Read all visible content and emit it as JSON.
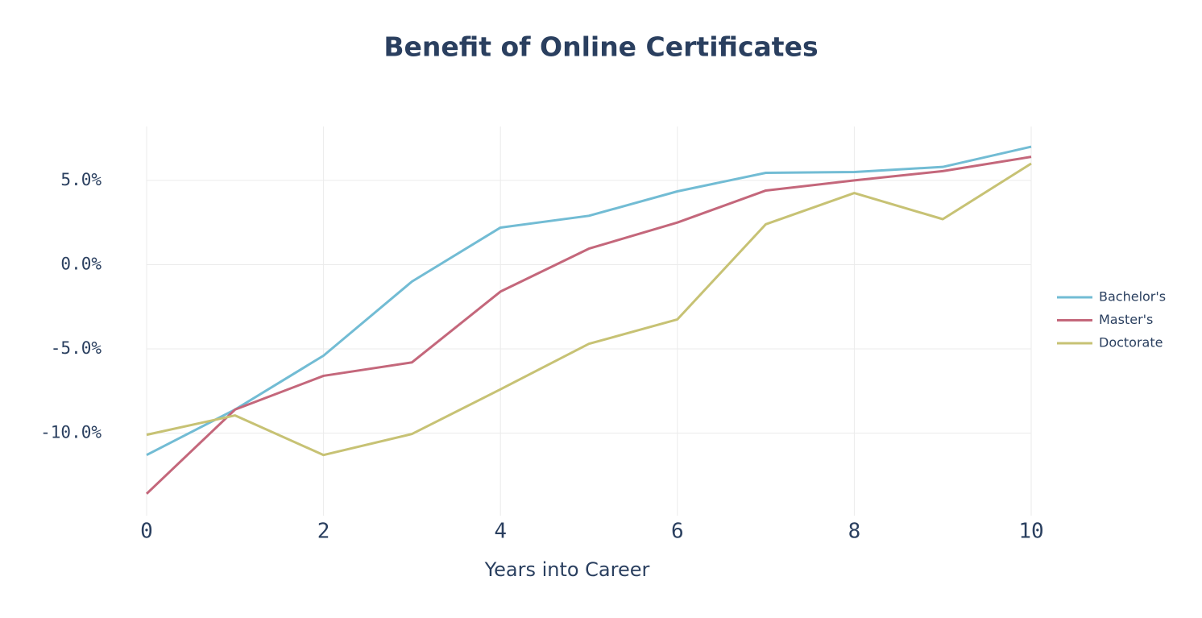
{
  "chart_data": {
    "type": "line",
    "title": "Benefit of Online Certificates",
    "x_label": "Years into Career",
    "x": [
      0,
      1,
      2,
      3,
      4,
      5,
      6,
      7,
      8,
      9,
      10
    ],
    "series": [
      {
        "name": "Bachelor's",
        "color": "#72bcd4",
        "values": [
          -11.3,
          -8.6,
          -5.4,
          -1.0,
          2.2,
          2.9,
          4.35,
          5.45,
          5.5,
          5.8,
          7.0
        ]
      },
      {
        "name": "Master's",
        "color": "#c4677b",
        "values": [
          -13.6,
          -8.6,
          -6.6,
          -5.8,
          -1.6,
          0.95,
          2.5,
          4.4,
          5.0,
          5.55,
          6.4
        ]
      },
      {
        "name": "Doctorate",
        "color": "#c7c274",
        "values": [
          -10.1,
          -8.95,
          -11.3,
          -10.05,
          -7.4,
          -4.7,
          -3.25,
          2.4,
          4.25,
          2.7,
          6.0
        ]
      }
    ],
    "xlim": [
      0,
      10
    ],
    "xticks": [
      0,
      2,
      4,
      6,
      8,
      10
    ],
    "ylim": [
      -14.9,
      8.2
    ],
    "yticks": [
      {
        "value": -10,
        "label": "-10.0%"
      },
      {
        "value": -5,
        "label": "-5.0%"
      },
      {
        "value": 0,
        "label": "0.0%"
      },
      {
        "value": 5,
        "label": "5.0%"
      }
    ],
    "grid": true,
    "legend": "right"
  }
}
